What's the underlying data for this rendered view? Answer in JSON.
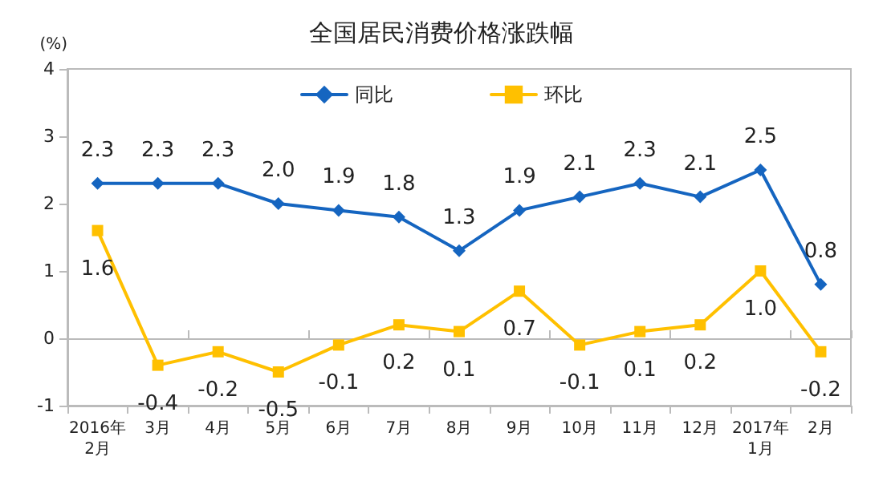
{
  "chart_data": {
    "type": "line",
    "title": "全国居民消费价格涨跌幅",
    "ylabel": "(%)",
    "categories": [
      "2016年\n2月",
      "3月",
      "4月",
      "5月",
      "6月",
      "7月",
      "8月",
      "9月",
      "10月",
      "11月",
      "12月",
      "2017年\n1月",
      "2月"
    ],
    "series": [
      {
        "name": "同比",
        "color": "#1565c0",
        "marker": "diamond",
        "values": [
          2.3,
          2.3,
          2.3,
          2.0,
          1.9,
          1.8,
          1.3,
          1.9,
          2.1,
          2.3,
          2.1,
          2.5,
          0.8
        ],
        "value_labels": [
          "2.3",
          "2.3",
          "2.3",
          "2.0",
          "1.9",
          "1.8",
          "1.3",
          "1.9",
          "2.1",
          "2.3",
          "2.1",
          "2.5",
          "0.8"
        ]
      },
      {
        "name": "环比",
        "color": "#ffc000",
        "marker": "square",
        "values": [
          1.6,
          -0.4,
          -0.2,
          -0.5,
          -0.1,
          0.2,
          0.1,
          0.7,
          -0.1,
          0.1,
          0.2,
          1.0,
          -0.2
        ],
        "value_labels": [
          "1.6",
          "-0.4",
          "-0.2",
          "-0.5",
          "-0.1",
          "0.2",
          "0.1",
          "0.7",
          "-0.1",
          "0.1",
          "0.2",
          "1.0",
          "-0.2"
        ]
      }
    ],
    "ylim": [
      -1,
      4
    ],
    "yticks": [
      -1,
      0,
      1,
      2,
      3,
      4
    ],
    "legend": "top"
  }
}
